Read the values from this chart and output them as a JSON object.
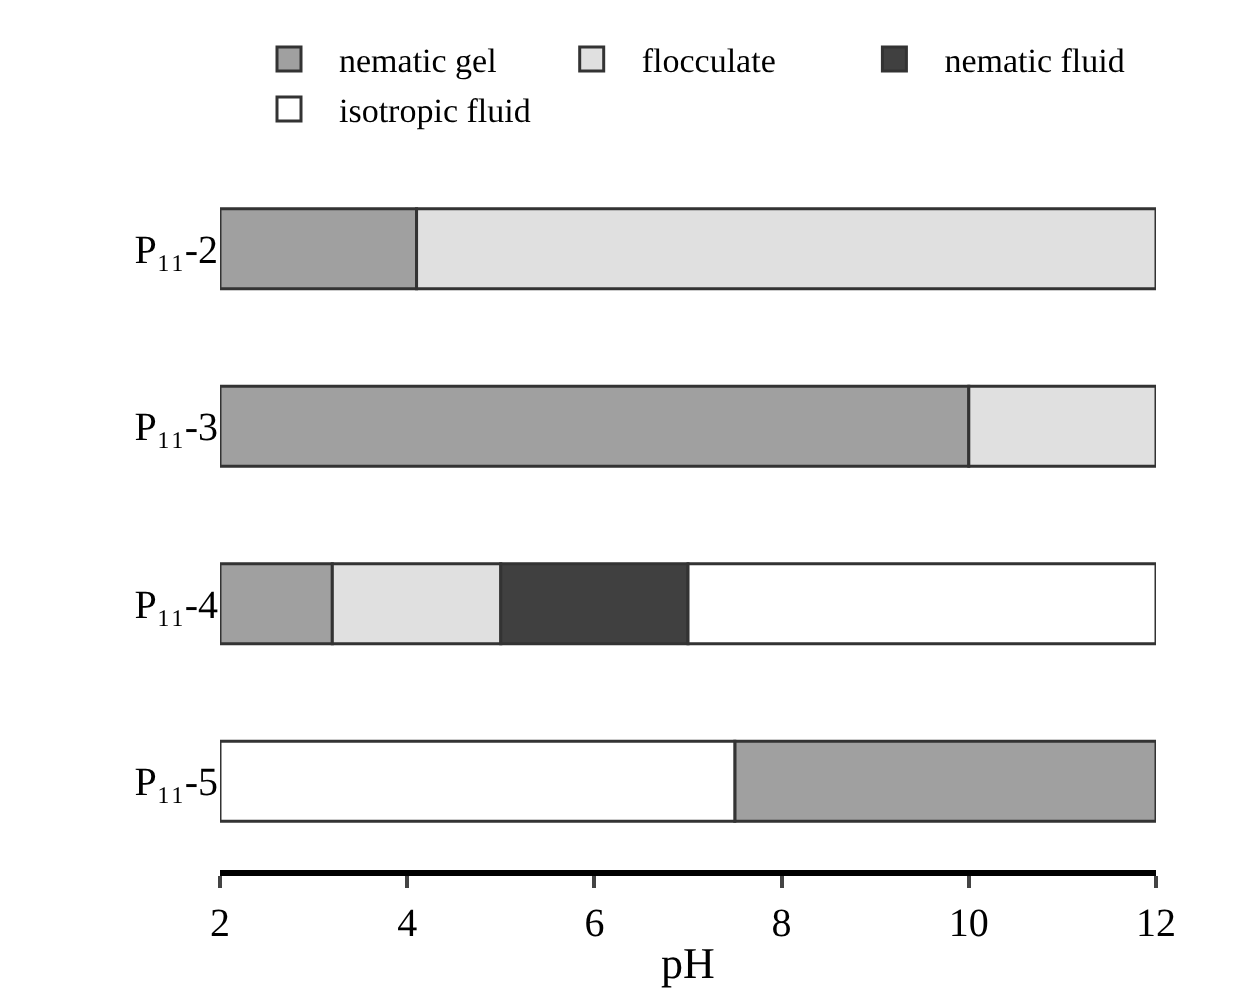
{
  "chart_data": {
    "type": "bar",
    "orientation": "horizontal",
    "xlabel": "pH",
    "categories": [
      "P₁₁-2",
      "P₁₁-3",
      "P₁₁-4",
      "P₁₁-5"
    ],
    "series": [
      {
        "name": "nematic gel",
        "color": "#a0a0a0",
        "base": [
          2,
          2,
          2,
          7.5
        ],
        "values": [
          2.1,
          8,
          1.2,
          4.5
        ]
      },
      {
        "name": "flocculate",
        "color": "#e0e0e0",
        "base": [
          4.1,
          10,
          3.2,
          null
        ],
        "values": [
          7.9,
          2,
          1.8,
          null
        ]
      },
      {
        "name": "nematic fluid",
        "color": "#404040",
        "base": [
          null,
          null,
          5,
          null
        ],
        "values": [
          null,
          null,
          2,
          null
        ]
      },
      {
        "name": "isotropic fluid",
        "color": "#ffffff",
        "base": [
          null,
          null,
          7,
          2
        ],
        "values": [
          null,
          null,
          5,
          5.5
        ]
      }
    ],
    "xlim": [
      2,
      12
    ],
    "xticks": [
      2,
      4,
      6,
      8,
      10,
      12
    ],
    "legend": "top"
  }
}
